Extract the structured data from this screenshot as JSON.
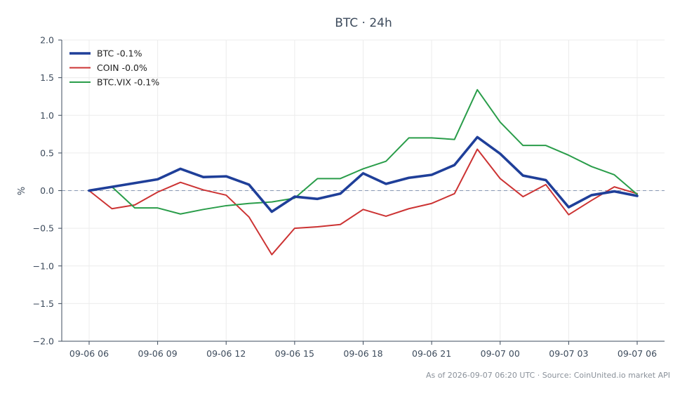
{
  "chart_data": {
    "type": "line",
    "title": "BTC · 24h",
    "xlabel": "",
    "ylabel": "%",
    "ylim": [
      -2.0,
      2.0
    ],
    "yticks": [
      -2.0,
      -1.5,
      -1.0,
      -0.5,
      0.0,
      0.5,
      1.0,
      1.5,
      2.0
    ],
    "ytick_labels": [
      "−2.0",
      "−1.5",
      "−1.0",
      "−0.5",
      "0.0",
      "0.5",
      "1.0",
      "1.5",
      "2.0"
    ],
    "x_tick_labels": [
      "09-06 06",
      "09-06 09",
      "09-06 12",
      "09-06 15",
      "09-06 18",
      "09-06 21",
      "09-07 00",
      "09-07 03",
      "09-07 06"
    ],
    "x": [
      "09-06 06",
      "09-06 07",
      "09-06 08",
      "09-06 09",
      "09-06 10",
      "09-06 11",
      "09-06 12",
      "09-06 13",
      "09-06 14",
      "09-06 15",
      "09-06 16",
      "09-06 17",
      "09-06 18",
      "09-06 19",
      "09-06 20",
      "09-06 21",
      "09-06 22",
      "09-06 23",
      "09-07 00",
      "09-07 01",
      "09-07 02",
      "09-07 03",
      "09-07 04",
      "09-07 05",
      "09-07 06"
    ],
    "grid": true,
    "zero_line": true,
    "legend_position": "top-left",
    "series": [
      {
        "name": "BTC -0.1%",
        "color": "#1f3f99",
        "values": [
          0.0,
          0.05,
          0.1,
          0.15,
          0.29,
          0.18,
          0.19,
          0.08,
          -0.28,
          -0.08,
          -0.11,
          -0.04,
          0.23,
          0.09,
          0.17,
          0.21,
          0.34,
          0.71,
          0.49,
          0.2,
          0.14,
          -0.22,
          -0.06,
          -0.01,
          -0.07
        ]
      },
      {
        "name": "COIN -0.0%",
        "color": "#cc3333",
        "values": [
          0.0,
          -0.24,
          -0.19,
          -0.02,
          0.11,
          0.01,
          -0.06,
          -0.35,
          -0.85,
          -0.5,
          -0.48,
          -0.45,
          -0.25,
          -0.34,
          -0.24,
          -0.17,
          -0.04,
          0.55,
          0.16,
          -0.08,
          0.08,
          -0.32,
          -0.13,
          0.05,
          -0.04
        ]
      },
      {
        "name": "BTC.VIX -0.1%",
        "color": "#2a9d4a",
        "values": [
          0.0,
          0.05,
          -0.23,
          -0.23,
          -0.31,
          -0.25,
          -0.2,
          -0.17,
          -0.15,
          -0.1,
          0.16,
          0.16,
          0.29,
          0.39,
          0.7,
          0.7,
          0.68,
          1.34,
          0.91,
          0.6,
          0.6,
          0.47,
          0.32,
          0.21,
          -0.05
        ]
      }
    ]
  },
  "footer": {
    "text": "As of 2026-09-07 06:20 UTC · Source: CoinUnited.io market API"
  }
}
